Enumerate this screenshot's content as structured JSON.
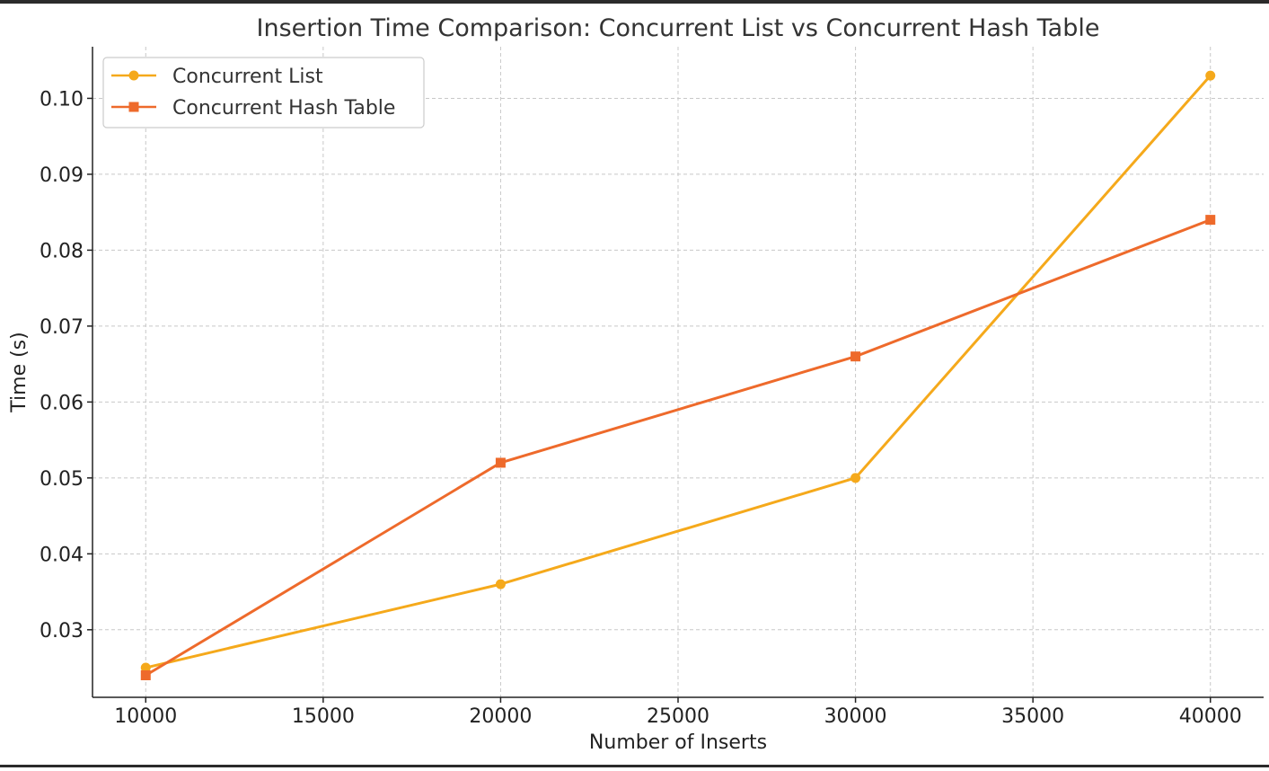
{
  "chart_data": {
    "type": "line",
    "title": "Insertion Time Comparison: Concurrent List vs Concurrent Hash Table",
    "xlabel": "Number of Inserts",
    "ylabel": "Time (s)",
    "x": [
      10000,
      20000,
      30000,
      40000
    ],
    "xlim": [
      8500,
      41500
    ],
    "ylim": [
      0.0211,
      0.1068
    ],
    "x_ticks": [
      10000,
      15000,
      20000,
      25000,
      30000,
      35000,
      40000
    ],
    "x_tick_labels": [
      "10000",
      "15000",
      "20000",
      "25000",
      "30000",
      "35000",
      "40000"
    ],
    "y_ticks": [
      0.03,
      0.04,
      0.05,
      0.06,
      0.07,
      0.08,
      0.09,
      0.1
    ],
    "y_tick_labels": [
      "0.03",
      "0.04",
      "0.05",
      "0.06",
      "0.07",
      "0.08",
      "0.09",
      "0.10"
    ],
    "grid": true,
    "legend_position": "top-left",
    "series": [
      {
        "name": "Concurrent List",
        "values": [
          0.025,
          0.036,
          0.05,
          0.103
        ],
        "color": "#f5a91b",
        "marker": "circle"
      },
      {
        "name": "Concurrent Hash Table",
        "values": [
          0.024,
          0.052,
          0.066,
          0.084
        ],
        "color": "#ee6a2b",
        "marker": "square"
      }
    ]
  }
}
